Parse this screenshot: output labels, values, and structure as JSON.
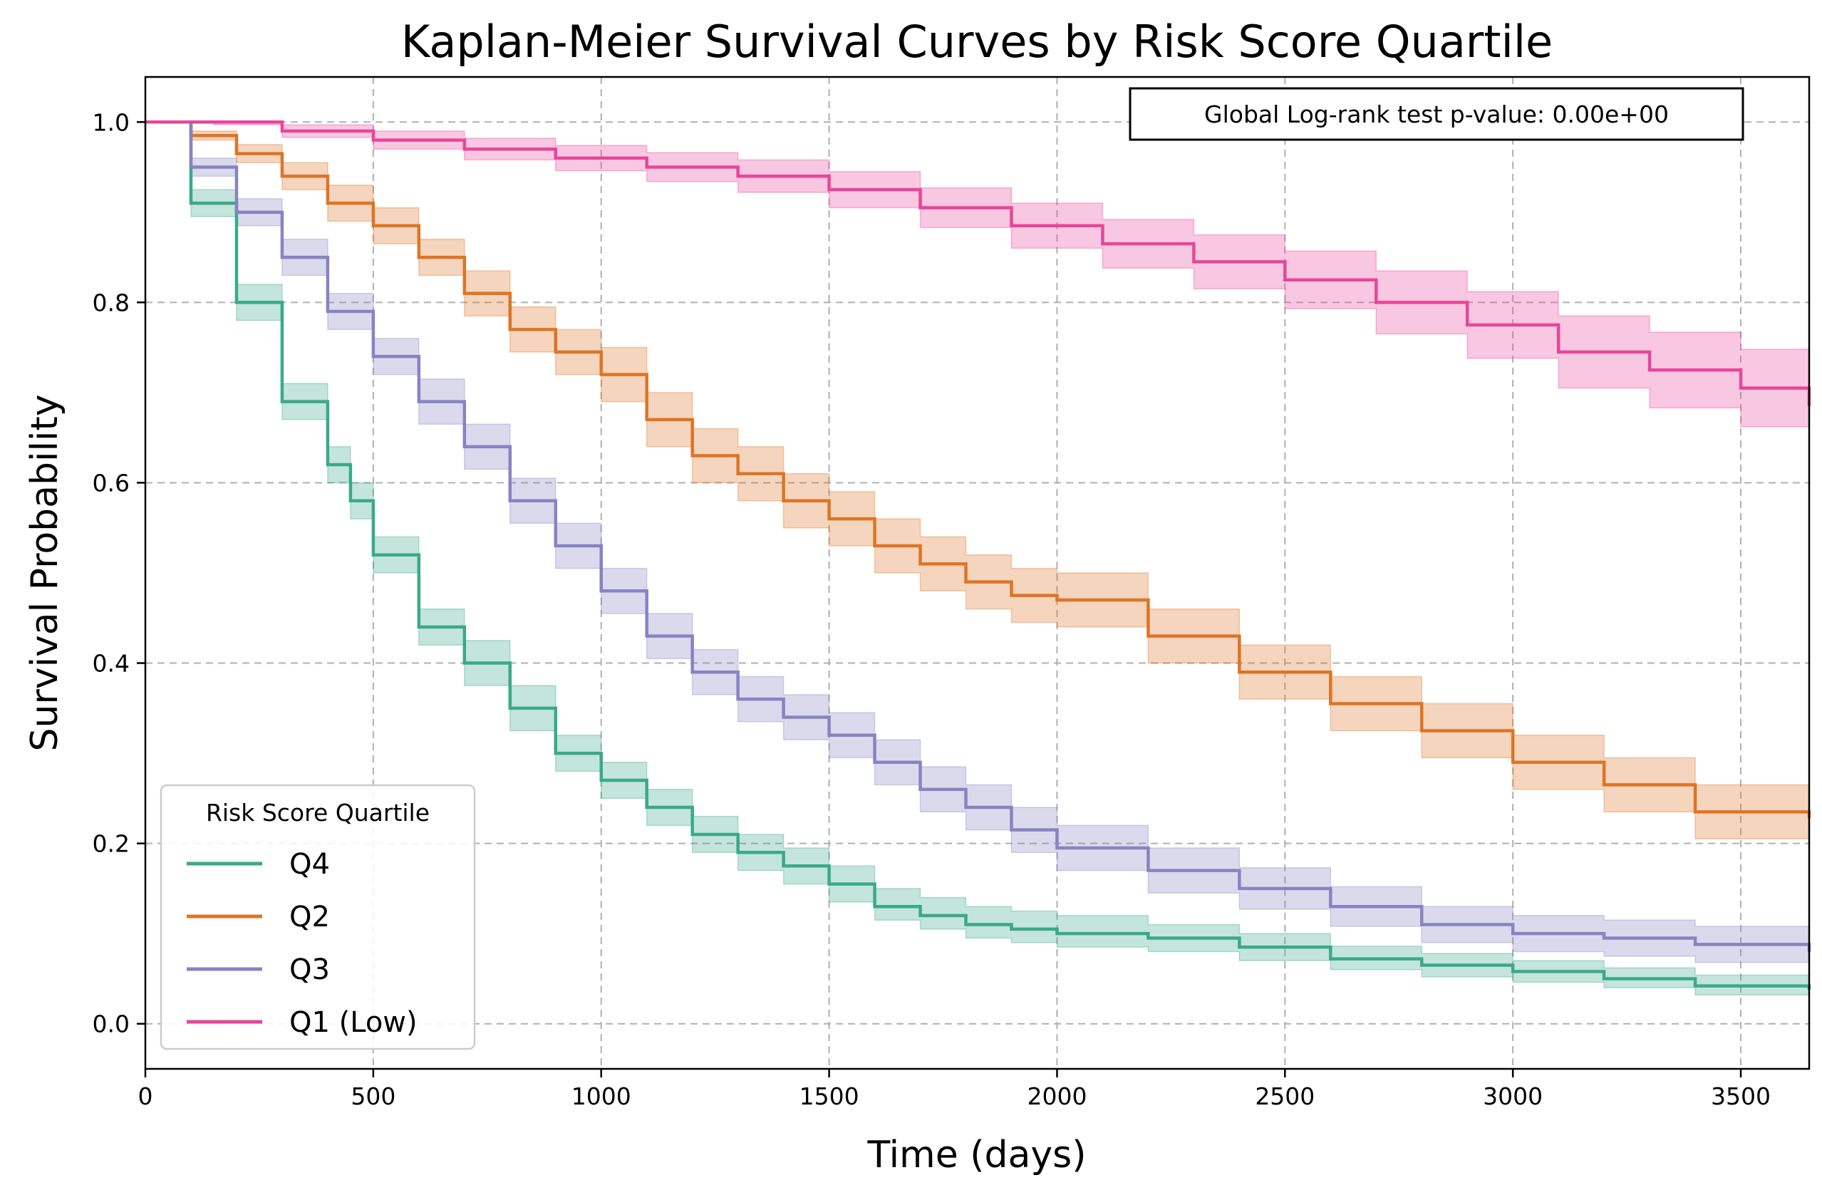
{
  "chart_data": {
    "type": "line",
    "title": "Kaplan-Meier Survival Curves by Risk Score Quartile",
    "xlabel": "Time (days)",
    "ylabel": "Survival Probability",
    "xlim": [
      0,
      3650
    ],
    "ylim": [
      -0.05,
      1.05
    ],
    "xticks": [
      0,
      500,
      1000,
      1500,
      2000,
      2500,
      3000,
      3500
    ],
    "xtick_labels": [
      "0",
      "500",
      "1000",
      "1500",
      "2000",
      "2500",
      "3000",
      "3500"
    ],
    "yticks": [
      0.0,
      0.2,
      0.4,
      0.6,
      0.8,
      1.0
    ],
    "ytick_labels": [
      "0.0",
      "0.2",
      "0.4",
      "0.6",
      "0.8",
      "1.0"
    ],
    "grid": true,
    "annotation": "Global Log-rank test p-value: 0.00e+00",
    "legend": {
      "title": "Risk Score Quartile",
      "placement": "lower left"
    },
    "series": [
      {
        "name": "Q4",
        "color": "#3aaa88",
        "x": [
          0,
          100,
          200,
          300,
          400,
          450,
          500,
          600,
          700,
          800,
          900,
          1000,
          1100,
          1200,
          1300,
          1400,
          1500,
          1600,
          1700,
          1800,
          1900,
          2000,
          2200,
          2400,
          2600,
          2800,
          3000,
          3200,
          3400,
          3650
        ],
        "y": [
          1.0,
          0.91,
          0.8,
          0.69,
          0.62,
          0.58,
          0.52,
          0.44,
          0.4,
          0.35,
          0.3,
          0.27,
          0.24,
          0.21,
          0.19,
          0.175,
          0.155,
          0.13,
          0.12,
          0.11,
          0.105,
          0.1,
          0.095,
          0.085,
          0.072,
          0.065,
          0.058,
          0.05,
          0.042,
          0.038
        ],
        "ci_lower": [
          1.0,
          0.895,
          0.78,
          0.67,
          0.6,
          0.56,
          0.5,
          0.42,
          0.375,
          0.325,
          0.28,
          0.25,
          0.22,
          0.19,
          0.17,
          0.155,
          0.135,
          0.115,
          0.105,
          0.095,
          0.09,
          0.085,
          0.08,
          0.07,
          0.06,
          0.052,
          0.046,
          0.04,
          0.032,
          0.028
        ],
        "ci_upper": [
          1.0,
          0.925,
          0.82,
          0.71,
          0.64,
          0.6,
          0.54,
          0.46,
          0.425,
          0.375,
          0.32,
          0.29,
          0.26,
          0.23,
          0.21,
          0.195,
          0.175,
          0.15,
          0.14,
          0.13,
          0.125,
          0.12,
          0.11,
          0.1,
          0.086,
          0.078,
          0.07,
          0.062,
          0.054,
          0.05
        ]
      },
      {
        "name": "Q2",
        "color": "#dd7526",
        "x": [
          0,
          100,
          200,
          300,
          400,
          500,
          600,
          700,
          800,
          900,
          1000,
          1100,
          1200,
          1300,
          1400,
          1500,
          1600,
          1700,
          1800,
          1900,
          2000,
          2200,
          2400,
          2600,
          2800,
          3000,
          3200,
          3400,
          3650
        ],
        "y": [
          1.0,
          0.985,
          0.965,
          0.94,
          0.91,
          0.885,
          0.85,
          0.81,
          0.77,
          0.745,
          0.72,
          0.67,
          0.63,
          0.61,
          0.58,
          0.56,
          0.53,
          0.51,
          0.49,
          0.475,
          0.47,
          0.43,
          0.39,
          0.355,
          0.325,
          0.29,
          0.265,
          0.235,
          0.228
        ],
        "ci_lower": [
          1.0,
          0.98,
          0.955,
          0.925,
          0.89,
          0.865,
          0.83,
          0.785,
          0.745,
          0.72,
          0.69,
          0.64,
          0.6,
          0.58,
          0.55,
          0.53,
          0.5,
          0.48,
          0.46,
          0.445,
          0.44,
          0.4,
          0.36,
          0.325,
          0.295,
          0.26,
          0.235,
          0.205,
          0.198
        ],
        "ci_upper": [
          1.0,
          0.99,
          0.975,
          0.955,
          0.93,
          0.905,
          0.87,
          0.835,
          0.795,
          0.77,
          0.75,
          0.7,
          0.66,
          0.64,
          0.61,
          0.59,
          0.56,
          0.54,
          0.52,
          0.505,
          0.5,
          0.46,
          0.42,
          0.385,
          0.355,
          0.32,
          0.295,
          0.265,
          0.258
        ]
      },
      {
        "name": "Q3",
        "color": "#8883c2",
        "x": [
          0,
          100,
          200,
          300,
          400,
          500,
          600,
          700,
          800,
          900,
          1000,
          1100,
          1200,
          1300,
          1400,
          1500,
          1600,
          1700,
          1800,
          1900,
          2000,
          2200,
          2400,
          2600,
          2800,
          3000,
          3200,
          3400,
          3650
        ],
        "y": [
          1.0,
          0.95,
          0.9,
          0.85,
          0.79,
          0.74,
          0.69,
          0.64,
          0.58,
          0.53,
          0.48,
          0.43,
          0.39,
          0.36,
          0.34,
          0.32,
          0.29,
          0.26,
          0.24,
          0.215,
          0.195,
          0.17,
          0.15,
          0.13,
          0.11,
          0.1,
          0.095,
          0.088,
          0.08
        ],
        "ci_lower": [
          1.0,
          0.94,
          0.885,
          0.83,
          0.77,
          0.72,
          0.665,
          0.615,
          0.555,
          0.505,
          0.455,
          0.405,
          0.365,
          0.335,
          0.315,
          0.295,
          0.265,
          0.235,
          0.215,
          0.19,
          0.17,
          0.145,
          0.127,
          0.108,
          0.09,
          0.08,
          0.075,
          0.068,
          0.06
        ],
        "ci_upper": [
          1.0,
          0.96,
          0.915,
          0.87,
          0.81,
          0.76,
          0.715,
          0.665,
          0.605,
          0.555,
          0.505,
          0.455,
          0.415,
          0.385,
          0.365,
          0.345,
          0.315,
          0.285,
          0.265,
          0.24,
          0.22,
          0.195,
          0.173,
          0.152,
          0.13,
          0.12,
          0.115,
          0.108,
          0.1
        ]
      },
      {
        "name": "Q1 (Low)",
        "color": "#e7469a",
        "x": [
          0,
          150,
          300,
          500,
          700,
          900,
          1100,
          1300,
          1500,
          1700,
          1900,
          2100,
          2300,
          2500,
          2700,
          2900,
          3100,
          3300,
          3500,
          3650
        ],
        "y": [
          1.0,
          1.0,
          0.99,
          0.98,
          0.97,
          0.96,
          0.95,
          0.94,
          0.925,
          0.905,
          0.885,
          0.865,
          0.845,
          0.825,
          0.8,
          0.775,
          0.745,
          0.725,
          0.705,
          0.685
        ],
        "ci_lower": [
          1.0,
          0.997,
          0.983,
          0.97,
          0.958,
          0.946,
          0.934,
          0.922,
          0.905,
          0.883,
          0.86,
          0.838,
          0.815,
          0.793,
          0.765,
          0.738,
          0.705,
          0.683,
          0.662,
          0.64
        ],
        "ci_upper": [
          1.0,
          1.0,
          0.997,
          0.99,
          0.982,
          0.974,
          0.966,
          0.958,
          0.945,
          0.927,
          0.91,
          0.892,
          0.875,
          0.857,
          0.835,
          0.812,
          0.785,
          0.767,
          0.748,
          0.73
        ]
      }
    ]
  }
}
